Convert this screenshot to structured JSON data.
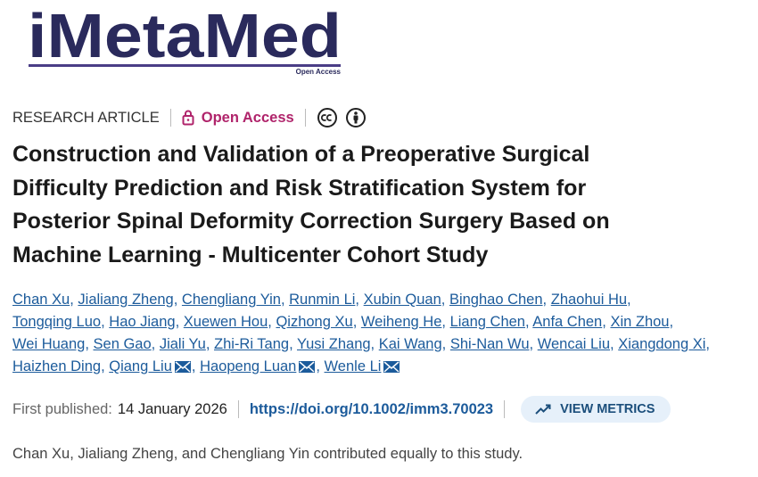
{
  "logo": {
    "name": "iMetaMed",
    "tagline": "Open Access"
  },
  "header": {
    "article_type": "RESEARCH ARTICLE",
    "access": "Open Access"
  },
  "title_lines": [
    "Construction and Validation of a Preoperative Surgical",
    "Difficulty Prediction and Risk Stratification System for",
    "Posterior Spinal Deformity Correction Surgery Based on",
    "Machine Learning - Multicenter Cohort Study"
  ],
  "authors": [
    [
      {
        "name": "Chan Xu"
      },
      {
        "name": "Jialiang Zheng"
      },
      {
        "name": "Chengliang Yin"
      },
      {
        "name": "Runmin Li"
      },
      {
        "name": "Xubin Quan"
      },
      {
        "name": "Binghao Chen"
      },
      {
        "name": "Zhaohui Hu"
      }
    ],
    [
      {
        "name": "Tongqing Luo"
      },
      {
        "name": "Hao Jiang"
      },
      {
        "name": "Xuewen Hou"
      },
      {
        "name": "Qizhong Xu"
      },
      {
        "name": "Weiheng He"
      },
      {
        "name": "Liang Chen"
      },
      {
        "name": "Anfa Chen"
      },
      {
        "name": "Xin Zhou"
      }
    ],
    [
      {
        "name": "Wei Huang"
      },
      {
        "name": "Sen Gao"
      },
      {
        "name": "Jiali Yu"
      },
      {
        "name": "Zhi-Ri Tang"
      },
      {
        "name": "Yusi Zhang"
      },
      {
        "name": "Kai Wang"
      },
      {
        "name": "Shi-Nan Wu"
      },
      {
        "name": "Wencai Liu"
      },
      {
        "name": "Xiangdong Xi"
      }
    ],
    [
      {
        "name": "Haizhen Ding"
      },
      {
        "name": "Qiang Liu",
        "corresponding": true
      },
      {
        "name": "Haopeng Luan",
        "corresponding": true
      },
      {
        "name": "Wenle Li",
        "corresponding": true
      }
    ]
  ],
  "publication": {
    "label": "First published:",
    "date": "14 January 2026",
    "doi": "https://doi.org/10.1002/imm3.70023",
    "metrics_button": "VIEW METRICS"
  },
  "note": "Chan Xu, Jialiang Zheng, and Chengliang Yin contributed equally to this study."
}
